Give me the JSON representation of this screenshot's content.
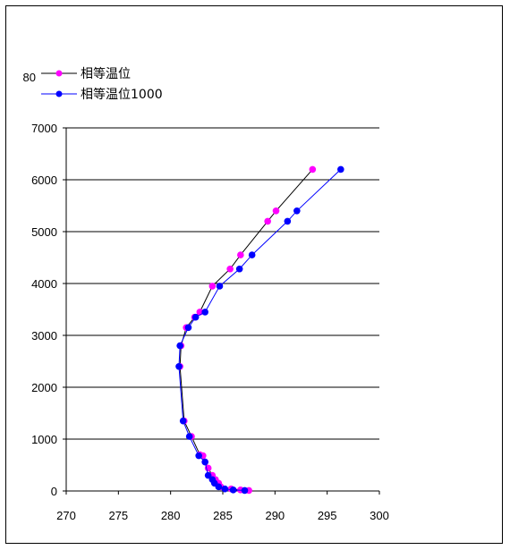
{
  "chart_data": {
    "type": "scatter",
    "title": "",
    "xlabel": "",
    "ylabel": "",
    "xlim": [
      270,
      300
    ],
    "ylim": [
      0,
      7000
    ],
    "xticks": [
      270,
      275,
      280,
      285,
      290,
      295,
      300
    ],
    "yticks": [
      0,
      1000,
      2000,
      3000,
      4000,
      5000,
      6000,
      7000
    ],
    "grid": "horizontal",
    "stray_label": "80",
    "legend": {
      "position": "top-left",
      "entries": [
        "相等温位",
        "相等温位1000"
      ]
    },
    "series": [
      {
        "name": "相等温位",
        "color": "#ff00ff",
        "x": [
          287.5,
          286.7,
          285.8,
          284.8,
          284.6,
          284.3,
          284.0,
          283.6,
          283.3,
          283.1,
          282.8,
          282.0,
          281.3,
          280.9,
          281.0,
          281.5,
          282.3,
          282.8,
          284.0,
          285.7,
          286.7,
          289.3,
          290.1,
          293.6
        ],
        "y": [
          10,
          20,
          40,
          80,
          150,
          220,
          300,
          440,
          560,
          680,
          700,
          1050,
          1350,
          2400,
          2800,
          3150,
          3350,
          3450,
          3950,
          4280,
          4550,
          5200,
          5400,
          6200
        ]
      },
      {
        "name": "相等温位1000",
        "color": "#0000ff",
        "x": [
          287.1,
          286.0,
          285.2,
          284.6,
          284.2,
          284.0,
          283.6,
          283.3,
          282.7,
          281.8,
          281.2,
          280.8,
          280.9,
          281.7,
          282.4,
          283.3,
          284.7,
          286.6,
          287.8,
          291.2,
          292.1,
          296.3
        ],
        "y": [
          10,
          20,
          40,
          80,
          150,
          220,
          300,
          560,
          680,
          1050,
          1350,
          2400,
          2800,
          3150,
          3350,
          3450,
          3950,
          4280,
          4550,
          5200,
          5400,
          6200
        ]
      }
    ]
  }
}
